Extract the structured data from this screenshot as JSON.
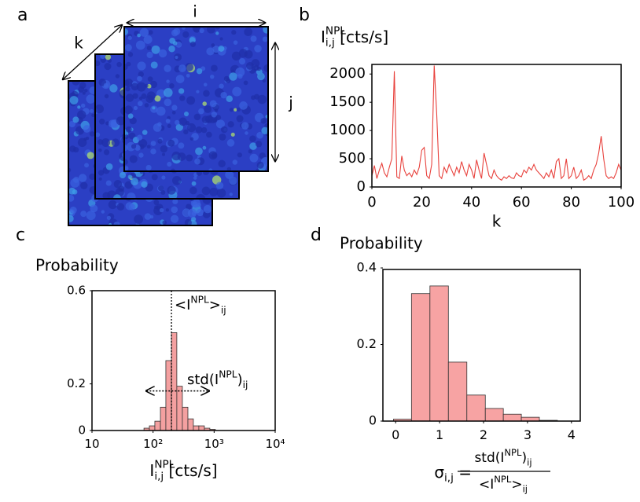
{
  "image_stack": {
    "panel": "a",
    "axis_labels": [
      "i",
      "j",
      "k"
    ]
  },
  "chart_data": [
    {
      "type": "line",
      "panel": "b",
      "color": "#e8413c",
      "ylabel": [
        {
          "t": "I"
        },
        {
          "t": "NPL",
          "s": "sup"
        },
        {
          "t": "i,j",
          "s": "sub"
        },
        {
          "t": " [cts/s]"
        }
      ],
      "xlabel": "k",
      "x": [
        0,
        1,
        2,
        3,
        4,
        5,
        6,
        7,
        8,
        9,
        10,
        11,
        12,
        13,
        14,
        15,
        16,
        17,
        18,
        19,
        20,
        21,
        22,
        23,
        24,
        25,
        26,
        27,
        28,
        29,
        30,
        31,
        32,
        33,
        34,
        35,
        36,
        37,
        38,
        39,
        40,
        41,
        42,
        43,
        44,
        45,
        46,
        47,
        48,
        49,
        50,
        51,
        52,
        53,
        54,
        55,
        56,
        57,
        58,
        59,
        60,
        61,
        62,
        63,
        64,
        65,
        66,
        67,
        68,
        69,
        70,
        71,
        72,
        73,
        74,
        75,
        76,
        77,
        78,
        79,
        80,
        81,
        82,
        83,
        84,
        85,
        86,
        87,
        88,
        89,
        90,
        91,
        92,
        93,
        94,
        95,
        96,
        97,
        98,
        99,
        100
      ],
      "values": [
        200,
        380,
        150,
        300,
        420,
        250,
        180,
        350,
        500,
        2050,
        180,
        150,
        550,
        300,
        200,
        250,
        180,
        300,
        220,
        350,
        650,
        700,
        200,
        150,
        400,
        2150,
        1300,
        200,
        150,
        350,
        250,
        400,
        300,
        200,
        350,
        250,
        450,
        300,
        200,
        400,
        300,
        150,
        480,
        300,
        150,
        600,
        400,
        200,
        150,
        300,
        200,
        150,
        120,
        180,
        150,
        200,
        160,
        150,
        250,
        200,
        180,
        300,
        250,
        350,
        300,
        400,
        300,
        250,
        200,
        150,
        250,
        180,
        300,
        150,
        450,
        500,
        150,
        200,
        500,
        150,
        200,
        350,
        150,
        200,
        300,
        120,
        150,
        200,
        150,
        300,
        400,
        600,
        900,
        500,
        200,
        150,
        180,
        150,
        250,
        400,
        300
      ],
      "xlim": [
        0,
        100
      ],
      "xticks": [
        0,
        20,
        40,
        60,
        80,
        100
      ],
      "ylim": [
        0,
        2170
      ],
      "yticks": [
        0,
        500,
        1000,
        1500,
        2000
      ]
    },
    {
      "type": "histogram",
      "panel": "c",
      "color": "#f4a0a0",
      "title": "Probability",
      "xlabel": [
        {
          "t": "I"
        },
        {
          "t": "NPL",
          "s": "sup"
        },
        {
          "t": "i,j",
          "s": "sub"
        },
        {
          "t": " [cts/s]"
        }
      ],
      "bins": [
        71,
        87,
        107,
        132,
        162,
        200,
        245,
        302,
        372,
        457,
        562,
        692,
        851,
        1047
      ],
      "values": [
        0.01,
        0.02,
        0.04,
        0.1,
        0.3,
        0.42,
        0.19,
        0.1,
        0.05,
        0.02,
        0.02,
        0.01,
        0.005
      ],
      "xlog": true,
      "xlim": [
        10,
        10000
      ],
      "xticks": [
        {
          "value": 10,
          "label": "10"
        },
        {
          "value": 100,
          "label": "10²"
        },
        {
          "value": 1000,
          "label": "10³"
        },
        {
          "value": 10000,
          "label": "10⁴"
        }
      ],
      "ylim": [
        0,
        0.6
      ],
      "yticks": [
        0,
        0.2,
        0.6
      ],
      "mean": 200,
      "mean_label": [
        {
          "t": "<I"
        },
        {
          "t": "NPL",
          "s": "sup"
        },
        {
          "t": ">"
        },
        {
          "t": "ij",
          "s": "sub"
        }
      ],
      "std_range": [
        78,
        820
      ],
      "std_y": 0.17,
      "std_label": [
        {
          "t": "std(I"
        },
        {
          "t": "NPL",
          "s": "sup"
        },
        {
          "t": ")"
        },
        {
          "t": "ij",
          "s": "sub"
        }
      ]
    },
    {
      "type": "histogram",
      "panel": "d",
      "color": "#f7a3a3",
      "title": "Probability",
      "xlabel": {
        "lhs": [
          {
            "t": "σ"
          },
          {
            "t": "i,j",
            "s": "sub"
          },
          {
            "t": " ="
          }
        ],
        "numerator": [
          {
            "t": "std(I"
          },
          {
            "t": "NPL",
            "s": "sup"
          },
          {
            "t": ")"
          },
          {
            "t": "ij",
            "s": "sub"
          }
        ],
        "denominator": [
          {
            "t": "<I"
          },
          {
            "t": "NPL",
            "s": "sup"
          },
          {
            "t": ">"
          },
          {
            "t": "ij",
            "s": "sub"
          }
        ]
      },
      "bins": [
        -0.05,
        0.36,
        0.78,
        1.2,
        1.62,
        2.04,
        2.45,
        2.86,
        3.27,
        3.68
      ],
      "values": [
        0.005,
        0.333,
        0.353,
        0.154,
        0.068,
        0.033,
        0.018,
        0.01,
        0.002
      ],
      "xlim": [
        -0.29,
        4.2
      ],
      "xticks": [
        0,
        1,
        2,
        3,
        4
      ],
      "ylim": [
        0,
        0.396
      ],
      "yticks": [
        0,
        0.2,
        0.4
      ]
    }
  ]
}
